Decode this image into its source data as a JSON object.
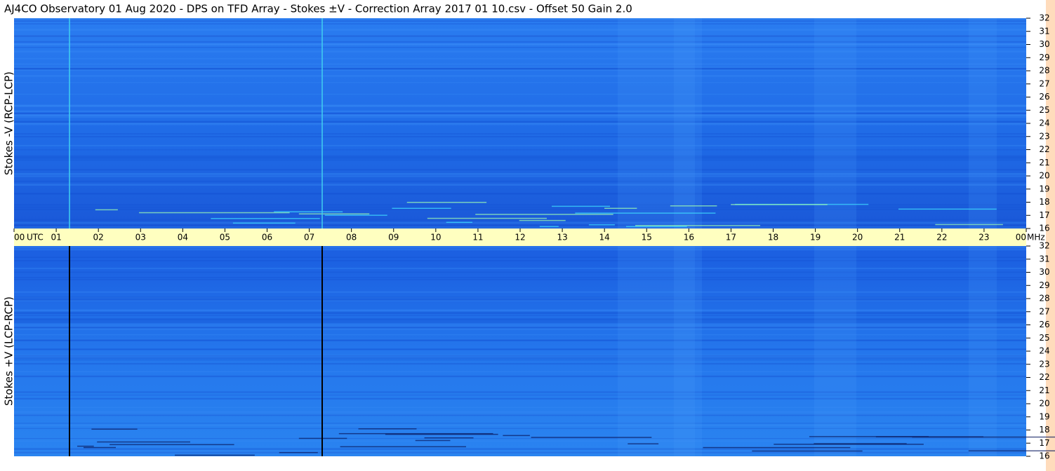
{
  "title": "AJ4CO Observatory  01 Aug 2020  -  DPS on TFD Array  -  Stokes ±V  -  Correction Array 2017 01 10.csv  -  Offset 50  Gain 2.0",
  "chart_data": [
    {
      "type": "spectrogram",
      "ylabel": "Stokes -V (RCP-LCP)",
      "ylim": [
        16,
        32
      ],
      "yticks": [
        16,
        17,
        18,
        19,
        20,
        21,
        22,
        23,
        24,
        25,
        26,
        27,
        28,
        29,
        30,
        31,
        32
      ],
      "xlim": [
        0,
        24
      ],
      "xticks": [
        {
          "value": 0,
          "label": "00"
        },
        {
          "value": 1,
          "label": "01"
        },
        {
          "value": 2,
          "label": "02"
        },
        {
          "value": 3,
          "label": "03"
        },
        {
          "value": 4,
          "label": "04"
        },
        {
          "value": 5,
          "label": "05"
        },
        {
          "value": 6,
          "label": "06"
        },
        {
          "value": 7,
          "label": "07"
        },
        {
          "value": 8,
          "label": "08"
        },
        {
          "value": 9,
          "label": "09"
        },
        10,
        11,
        12,
        13,
        14,
        15,
        16,
        17,
        18,
        19,
        20,
        21,
        22,
        23,
        {
          "value": 24,
          "label": "00"
        }
      ],
      "xunit": "UTC",
      "yunit": "MHz",
      "color": "#1f6ee8"
    },
    {
      "type": "spectrogram",
      "ylabel": "Stokes +V (LCP-RCP)",
      "ylim": [
        16,
        32
      ],
      "yticks": [
        16,
        17,
        18,
        19,
        20,
        21,
        22,
        23,
        24,
        25,
        26,
        27,
        28,
        29,
        30,
        31,
        32
      ],
      "color": "#1a62e2"
    }
  ]
}
